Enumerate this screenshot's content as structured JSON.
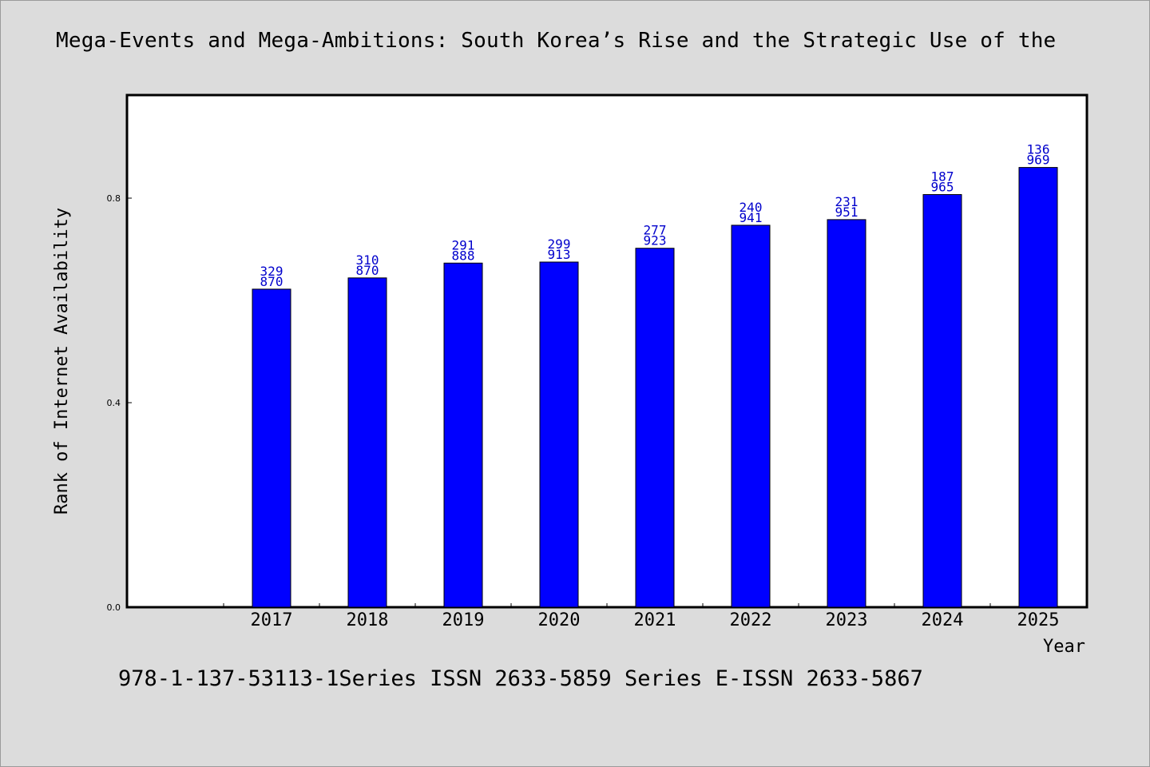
{
  "title": "Mega-Events and Mega-Ambitions: South Korea’s Rise and the Strategic Use of the",
  "footer": "978-1-137-53113-1Series ISSN 2633-5859 Series E-ISSN 2633-5867",
  "chart_data": {
    "type": "bar",
    "title": "Mega-Events and Mega-Ambitions: South Korea’s Rise and the Strategic Use of the",
    "xlabel": "Year",
    "ylabel": "Rank of Internet Availability",
    "categories": [
      "2017",
      "2018",
      "2019",
      "2020",
      "2021",
      "2022",
      "2023",
      "2024",
      "2025"
    ],
    "values": [
      0.622,
      0.644,
      0.673,
      0.675,
      0.702,
      0.747,
      0.758,
      0.807,
      0.86
    ],
    "data_labels": [
      [
        "329",
        "870"
      ],
      [
        "310",
        "870"
      ],
      [
        "291",
        "888"
      ],
      [
        "299",
        "913"
      ],
      [
        "277",
        "923"
      ],
      [
        "240",
        "941"
      ],
      [
        "231",
        "951"
      ],
      [
        "187",
        "965"
      ],
      [
        "136",
        "969"
      ]
    ],
    "y_ticks": [
      "0.0",
      "0.4",
      "0.8"
    ],
    "ylim": [
      0,
      1.0
    ],
    "grid": false,
    "legend": "none",
    "bar_color": "#0000ff",
    "label_color": "#0000cc"
  }
}
